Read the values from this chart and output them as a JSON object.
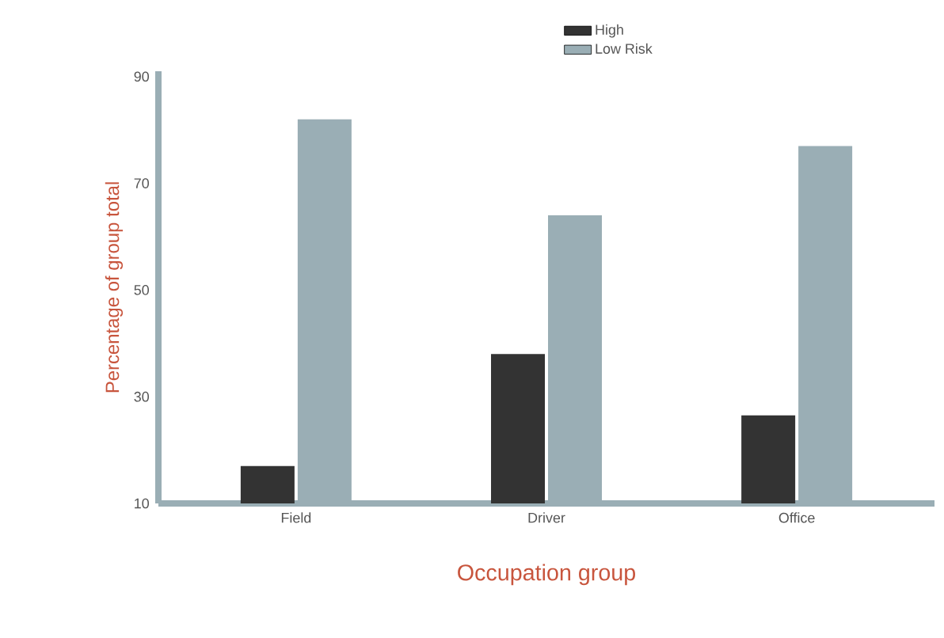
{
  "chart_data": {
    "type": "bar",
    "xlabel": "Occupation group",
    "ylabel": "Percentage of group total",
    "categories": [
      "Field",
      "Driver",
      "Office"
    ],
    "series": [
      {
        "name": "High",
        "color": "#333333",
        "values": [
          17,
          38,
          26.5
        ]
      },
      {
        "name": "Low Risk",
        "color": "#9aaeb5",
        "values": [
          82,
          64,
          77
        ]
      }
    ],
    "ylim": [
      10,
      91
    ],
    "yticks": [
      10,
      30,
      50,
      70,
      90
    ],
    "grid": false,
    "legend": "top"
  }
}
